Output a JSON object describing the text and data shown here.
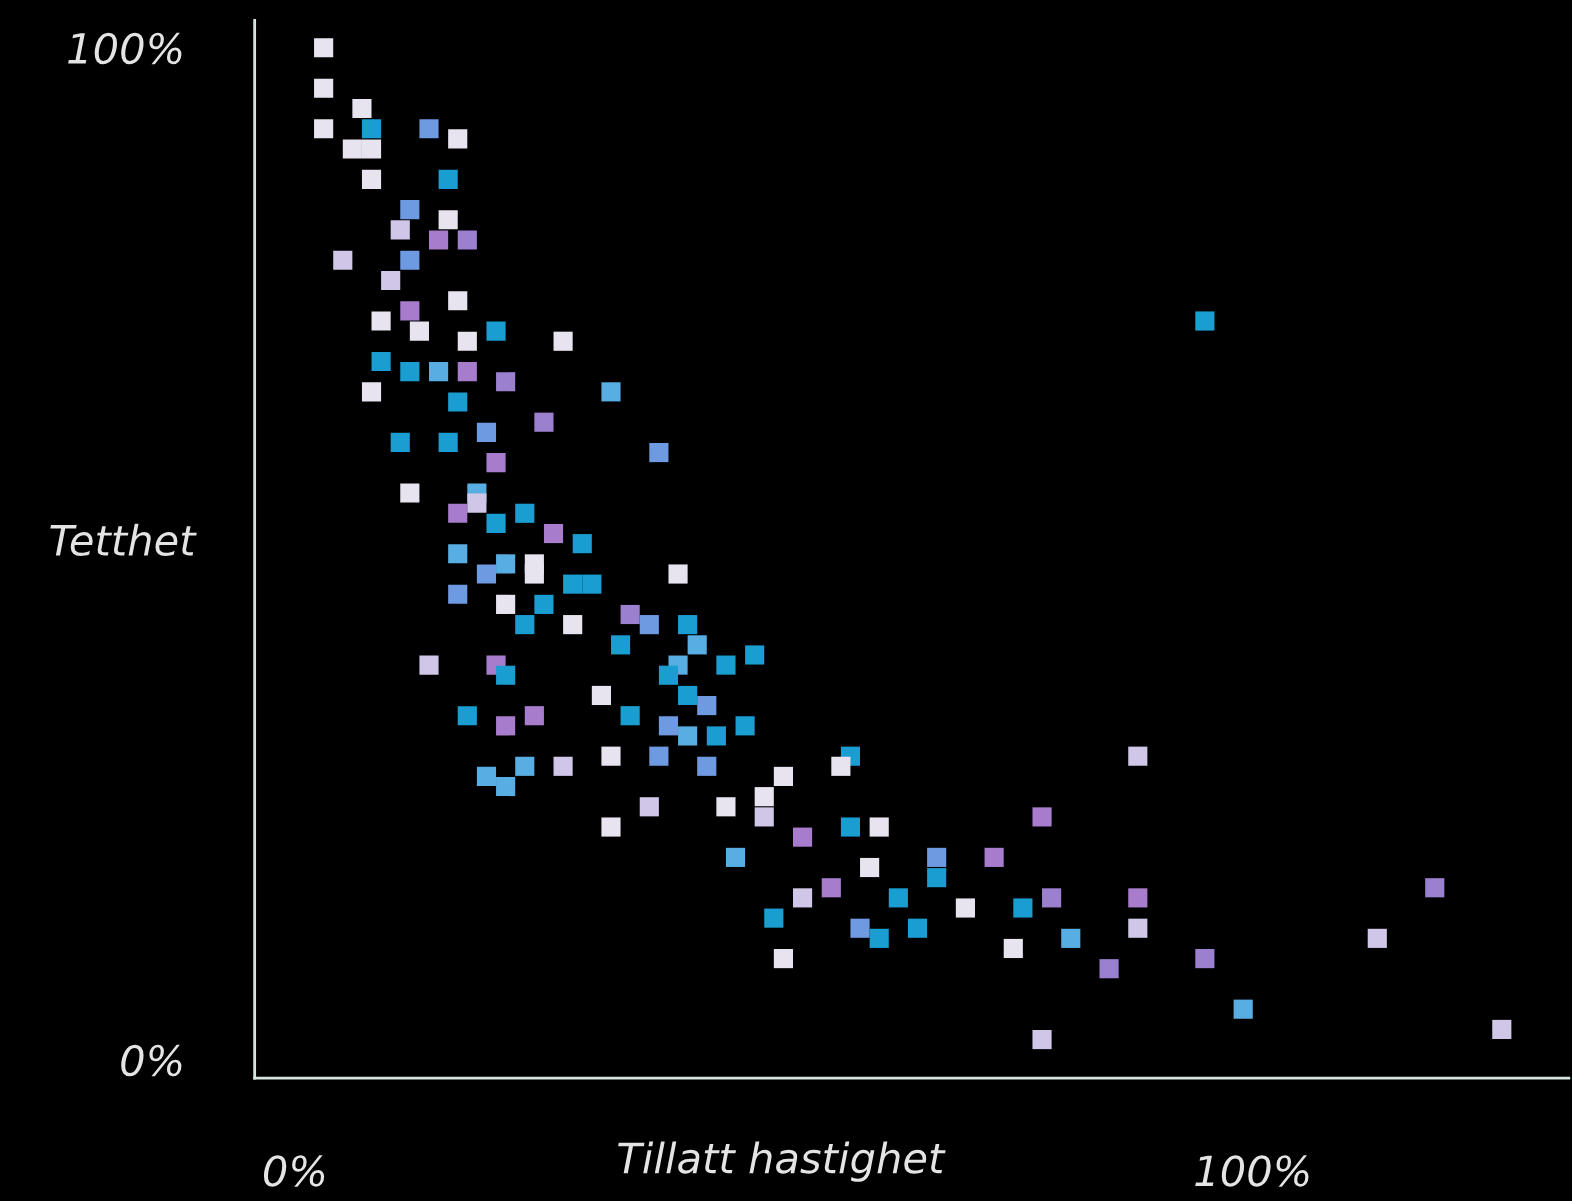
{
  "chart_data": {
    "type": "scatter",
    "xlabel": "Tillatt hastighet",
    "ylabel": "Tetthet",
    "xlim": [
      -4.2,
      133
    ],
    "ylim": [
      -1.8,
      102.7
    ],
    "xticks": [
      {
        "value": 0,
        "label": "0%"
      },
      {
        "value": 100,
        "label": "100%"
      }
    ],
    "yticks": [
      {
        "value": 0,
        "label": "0%"
      },
      {
        "value": 100,
        "label": "100%"
      }
    ],
    "grid": false,
    "legend": false,
    "marker": "square",
    "x": [
      3,
      3,
      3,
      7,
      8,
      6,
      8,
      8,
      14,
      17,
      16,
      12,
      16,
      11,
      15,
      18,
      12,
      5,
      10,
      17,
      12,
      9,
      13,
      18,
      21,
      28,
      9,
      12,
      15,
      18,
      22,
      8,
      33,
      17,
      26,
      20,
      11,
      16,
      38,
      21,
      12,
      19,
      17,
      19,
      21,
      24,
      27,
      30,
      17,
      22,
      25,
      20,
      25,
      17,
      29,
      31,
      40,
      22,
      26,
      35,
      37,
      24,
      29,
      41,
      42,
      34,
      40,
      45,
      48,
      14,
      21,
      39,
      22,
      32,
      41,
      43,
      18,
      22,
      25,
      35,
      39,
      41,
      47,
      44,
      58,
      33,
      38,
      28,
      24,
      20,
      22,
      43,
      51,
      57,
      88,
      49,
      37,
      45,
      49,
      33,
      78,
      58,
      61,
      46,
      53,
      60,
      67,
      73,
      67,
      56,
      63,
      88,
      53,
      79,
      70,
      76,
      50,
      59,
      65,
      61,
      81,
      88,
      75,
      85,
      95,
      51,
      99,
      78,
      126,
      113,
      119,
      95
    ],
    "values": [
      100,
      96,
      92,
      94,
      92,
      90,
      90,
      87,
      92,
      91,
      87,
      84,
      83,
      82,
      81,
      81,
      79,
      79,
      77,
      75,
      74,
      73,
      72,
      71,
      72,
      71,
      69,
      68,
      68,
      68,
      67,
      66,
      66,
      65,
      63,
      62,
      61,
      61,
      60,
      59,
      56,
      56,
      54,
      55,
      53,
      54,
      52,
      51,
      50,
      49,
      49,
      48,
      48,
      46,
      47,
      47,
      48,
      45,
      45,
      44,
      43,
      43,
      43,
      43,
      41,
      41,
      39,
      39,
      40,
      39,
      39,
      38,
      38,
      36,
      36,
      35,
      34,
      33,
      34,
      34,
      33,
      32,
      33,
      32,
      30,
      30,
      30,
      29,
      29,
      28,
      27,
      29,
      28,
      29,
      30,
      26,
      25,
      25,
      24,
      23,
      24,
      23,
      23,
      20,
      22,
      19,
      20,
      20,
      18,
      17,
      16,
      16,
      16,
      16,
      15,
      15,
      14,
      13,
      13,
      12,
      12,
      13,
      11,
      9,
      10,
      10,
      5,
      2,
      3,
      12,
      17,
      73
    ],
    "colors": [
      "#e8e4ef",
      "#e8e4ef",
      "#e8e4ef",
      "#e8e4ef",
      "#1a9ed2",
      "#e8e4ef",
      "#e8e4ef",
      "#e8e4ef",
      "#6e9ae2",
      "#e8e4ef",
      "#1a9ed2",
      "#6e9ae2",
      "#e8e4ef",
      "#cfc6e8",
      "#a87ccc",
      "#9c80d0",
      "#6e9ae2",
      "#cfc6e8",
      "#cfc6e8",
      "#e8e4ef",
      "#a87ccc",
      "#e8e4ef",
      "#e8e4ef",
      "#e8e4ef",
      "#1a9ed2",
      "#e8e4ef",
      "#1a9ed2",
      "#1a9ed2",
      "#58aee2",
      "#a87ccc",
      "#9c80d0",
      "#e8e4ef",
      "#58aee2",
      "#1a9ed2",
      "#9c80d0",
      "#6e9ae2",
      "#1a9ed2",
      "#1a9ed2",
      "#6e9ae2",
      "#a87ccc",
      "#e8e4ef",
      "#58aee2",
      "#a87ccc",
      "#cfc6e8",
      "#1a9ed2",
      "#1a9ed2",
      "#a87ccc",
      "#1a9ed2",
      "#58aee2",
      "#58aee2",
      "#e8e4ef",
      "#6e9ae2",
      "#e8e4ef",
      "#6e9ae2",
      "#1a9ed2",
      "#1a9ed2",
      "#e8e4ef",
      "#e8e4ef",
      "#1a9ed2",
      "#9c80d0",
      "#6e9ae2",
      "#1a9ed2",
      "#e8e4ef",
      "#1a9ed2",
      "#58aee2",
      "#1a9ed2",
      "#58aee2",
      "#1a9ed2",
      "#1a9ed2",
      "#cfc6e8",
      "#a87ccc",
      "#1a9ed2",
      "#1a9ed2",
      "#e8e4ef",
      "#1a9ed2",
      "#6e9ae2",
      "#1a9ed2",
      "#a87ccc",
      "#a87ccc",
      "#1a9ed2",
      "#6e9ae2",
      "#58aee2",
      "#1a9ed2",
      "#1a9ed2",
      "#1a9ed2",
      "#e8e4ef",
      "#6e9ae2",
      "#cfc6e8",
      "#58aee2",
      "#58aee2",
      "#58aee2",
      "#6e9ae2",
      "#e8e4ef",
      "#e8e4ef",
      "#cfc6e8",
      "#e8e4ef",
      "#cfc6e8",
      "#e8e4ef",
      "#cfc6e8",
      "#e8e4ef",
      "#a87ccc",
      "#1a9ed2",
      "#e8e4ef",
      "#58aee2",
      "#a87ccc",
      "#e8e4ef",
      "#6e9ae2",
      "#a87ccc",
      "#1a9ed2",
      "#a87ccc",
      "#1a9ed2",
      "#a87ccc",
      "#cfc6e8",
      "#9c80d0",
      "#e8e4ef",
      "#1a9ed2",
      "#1a9ed2",
      "#6e9ae2",
      "#1a9ed2",
      "#1a9ed2",
      "#58aee2",
      "#cfc6e8",
      "#e8e4ef",
      "#9c80d0",
      "#9c80d0",
      "#e8e4ef",
      "#58aee2",
      "#cfc6e8",
      "#cfc6e8",
      "#cfc6e8",
      "#9c80d0",
      "#1a9ed2"
    ]
  }
}
